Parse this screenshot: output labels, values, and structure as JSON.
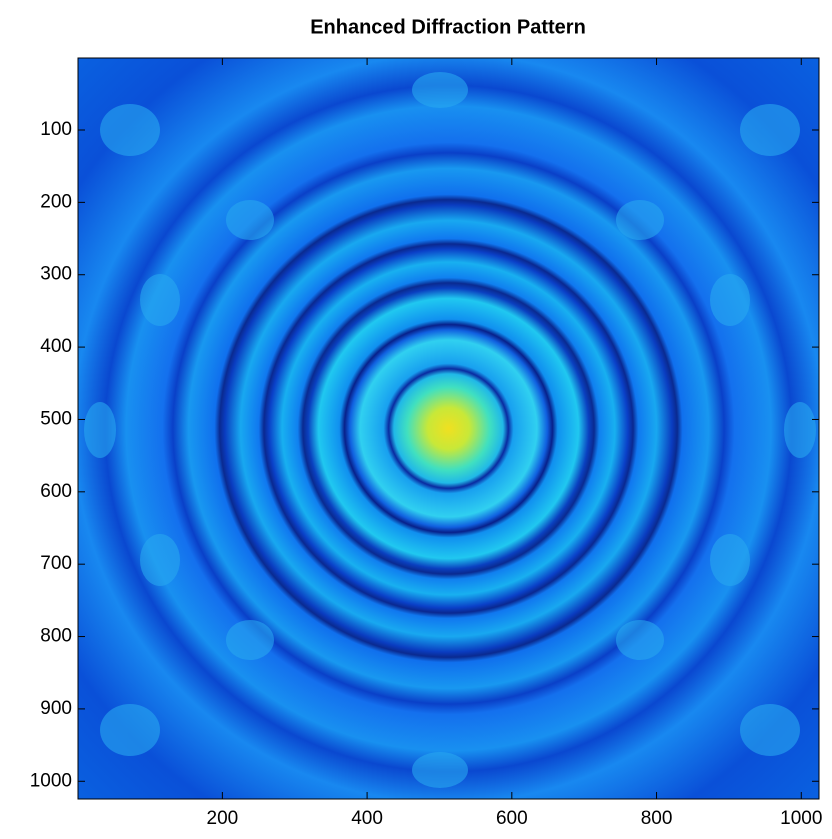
{
  "chart_data": {
    "type": "image",
    "title": "Enhanced Diffraction Pattern",
    "xlim": [
      0.5,
      1024.5
    ],
    "ylim": [
      0.5,
      1024.5
    ],
    "y_reversed": true,
    "xticks": [
      200,
      400,
      600,
      800,
      1000
    ],
    "yticks": [
      100,
      200,
      300,
      400,
      500,
      600,
      700,
      800,
      900,
      1000
    ]
  }
}
